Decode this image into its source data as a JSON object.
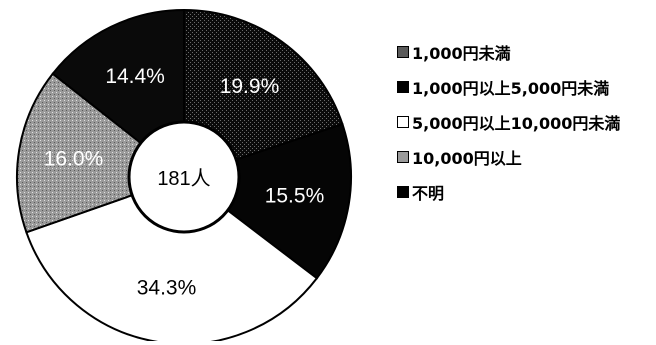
{
  "chart_data": {
    "type": "pie",
    "center_label": "181人",
    "categories": [
      "1,000円未満",
      "1,000円以上5,000円未満",
      "5,000円以上10,000円未満",
      "10,000円以上",
      "不明"
    ],
    "values": [
      19.9,
      15.5,
      34.3,
      16.0,
      14.4
    ],
    "data_labels": [
      "19.9%",
      "15.5%",
      "34.3%",
      "16.0%",
      "14.4%"
    ],
    "colors": [
      "#2e2e2e",
      "#050505",
      "#ffffff",
      "#9a9a9a",
      "#0a0a0a"
    ],
    "label_colors": [
      "#ffffff",
      "#ffffff",
      "#000000",
      "#ffffff",
      "#ffffff"
    ],
    "legend_position": "right",
    "start_angle_deg": 0,
    "direction": "clockwise"
  }
}
